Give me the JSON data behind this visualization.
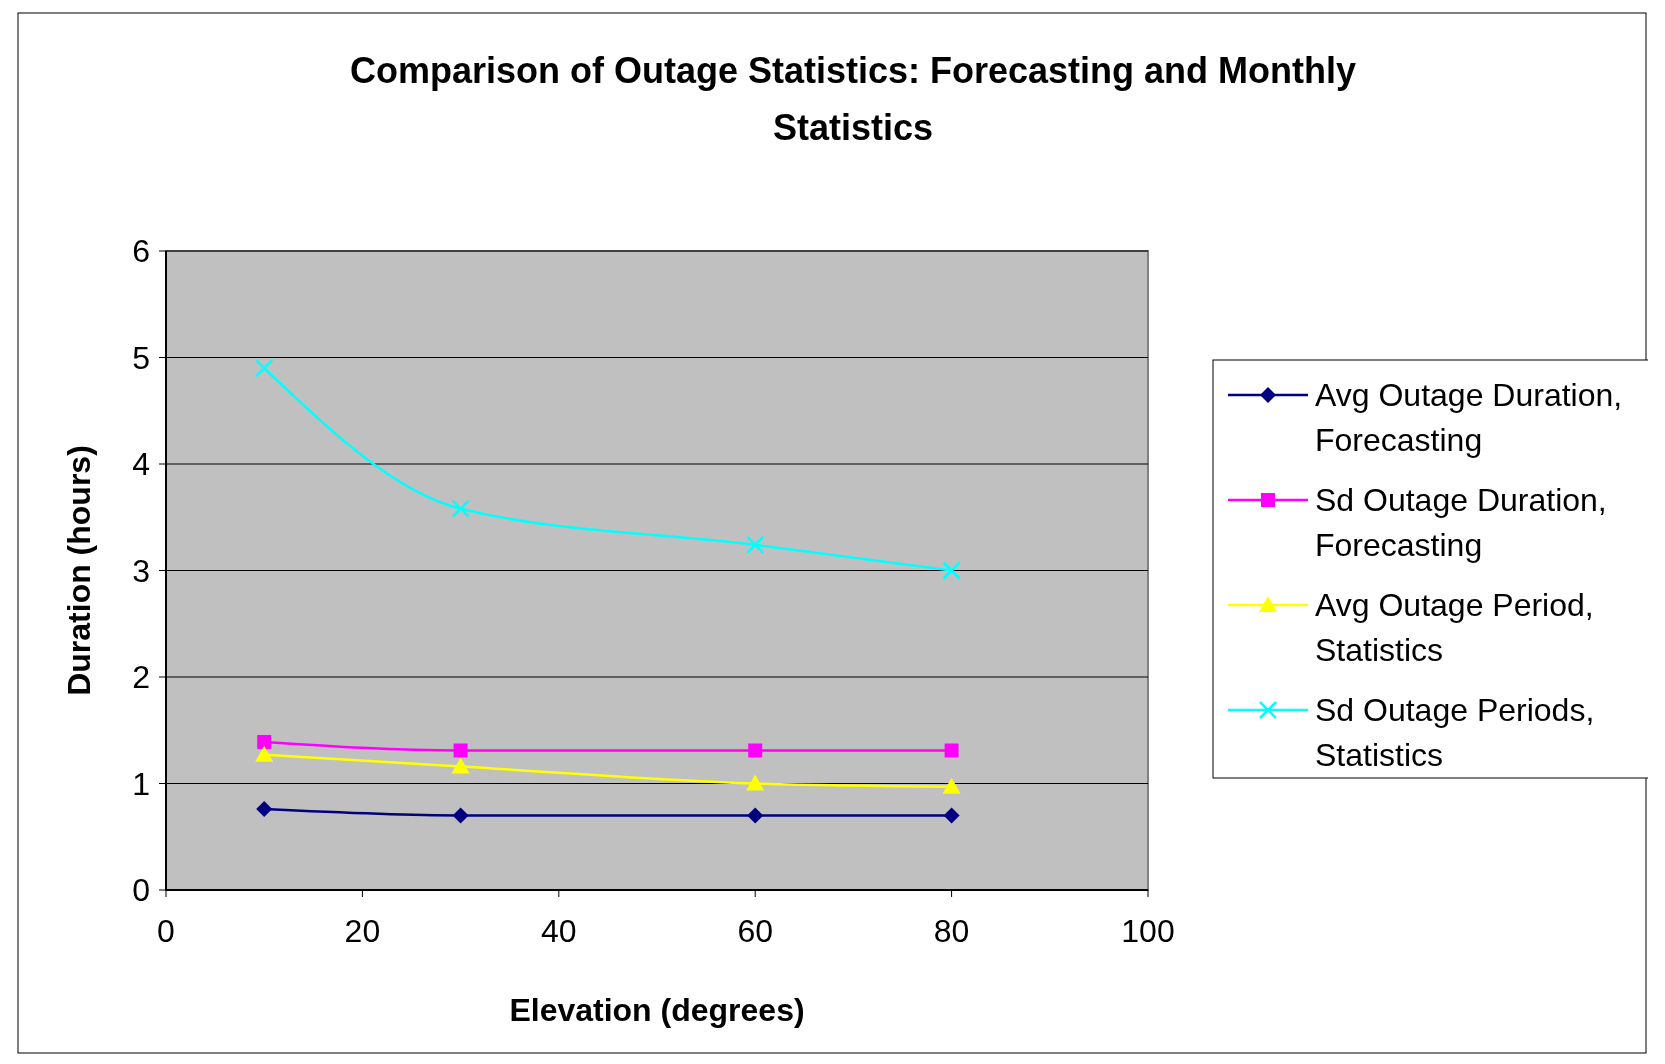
{
  "chart_data": {
    "type": "line",
    "title": "Comparison of Outage Statistics: Forecasting and Monthly Statistics",
    "xlabel": "Elevation (degrees)",
    "ylabel": "Duration (hours)",
    "x": [
      10,
      30,
      60,
      80
    ],
    "xlim": [
      0,
      100
    ],
    "xticks": [
      0,
      20,
      40,
      60,
      80,
      100
    ],
    "ylim": [
      0,
      6
    ],
    "yticks": [
      0,
      1,
      2,
      3,
      4,
      5,
      6
    ],
    "grid": "y",
    "legend": "right",
    "series": [
      {
        "name": "Avg Outage Duration, Forecasting",
        "color": "#000080",
        "marker": "diamond",
        "values": [
          0.76,
          0.7,
          0.7,
          0.7
        ]
      },
      {
        "name": "Sd Outage Duration, Forecasting",
        "color": "#ff00ff",
        "marker": "square",
        "values": [
          1.39,
          1.31,
          1.31,
          1.31
        ]
      },
      {
        "name": "Avg Outage Period, Statistics",
        "color": "#ffff00",
        "marker": "triangle",
        "values": [
          1.27,
          1.16,
          1.0,
          0.97
        ]
      },
      {
        "name": "Sd Outage Periods, Statistics",
        "color": "#00ffff",
        "marker": "cross",
        "values": [
          4.9,
          3.58,
          3.24,
          3.0
        ]
      }
    ]
  }
}
